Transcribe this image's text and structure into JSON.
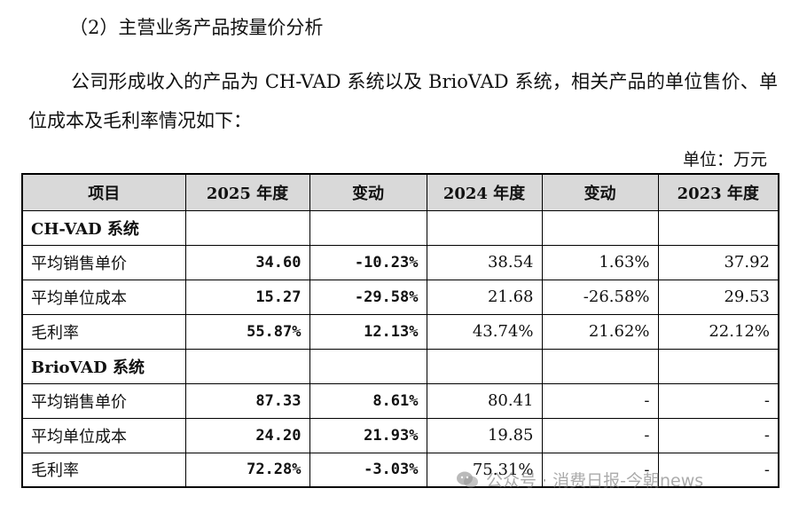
{
  "heading": "（2）主营业务产品按量价分析",
  "paragraph": "公司形成收入的产品为 CH-VAD 系统以及 BrioVAD 系统，相关产品的单位售价、单位成本及毛利率情况如下：",
  "unit": "单位：万元",
  "table": {
    "headers": [
      "项目",
      "2025 年度",
      "变动",
      "2024 年度",
      "变动",
      "2023 年度"
    ],
    "sections": [
      {
        "name": "CH-VAD 系统",
        "rows": [
          [
            "平均销售单价",
            "34.60",
            "-10.23%",
            "38.54",
            "1.63%",
            "37.92"
          ],
          [
            "平均单位成本",
            "15.27",
            "-29.58%",
            "21.68",
            "-26.58%",
            "29.53"
          ],
          [
            "毛利率",
            "55.87%",
            "12.13%",
            "43.74%",
            "21.62%",
            "22.12%"
          ]
        ]
      },
      {
        "name": "BrioVAD 系统",
        "rows": [
          [
            "平均销售单价",
            "87.33",
            "8.61%",
            "80.41",
            "-",
            "-"
          ],
          [
            "平均单位成本",
            "24.20",
            "21.93%",
            "19.85",
            "-",
            "-"
          ],
          [
            "毛利率",
            "72.28%",
            "-3.03%",
            "75.31%",
            "-",
            "-"
          ]
        ]
      }
    ]
  },
  "watermark": {
    "text": "公众号 · 消费日报-今朝news",
    "icon": "wechat-icon"
  }
}
